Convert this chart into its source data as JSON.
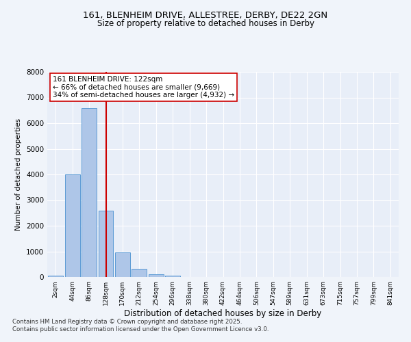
{
  "title1": "161, BLENHEIM DRIVE, ALLESTREE, DERBY, DE22 2GN",
  "title2": "Size of property relative to detached houses in Derby",
  "xlabel": "Distribution of detached houses by size in Derby",
  "ylabel": "Number of detached properties",
  "categories": [
    "2sqm",
    "44sqm",
    "86sqm",
    "128sqm",
    "170sqm",
    "212sqm",
    "254sqm",
    "296sqm",
    "338sqm",
    "380sqm",
    "422sqm",
    "464sqm",
    "506sqm",
    "547sqm",
    "589sqm",
    "631sqm",
    "673sqm",
    "715sqm",
    "757sqm",
    "799sqm",
    "841sqm"
  ],
  "values": [
    50,
    4000,
    6600,
    2600,
    970,
    320,
    110,
    60,
    0,
    0,
    0,
    0,
    0,
    0,
    0,
    0,
    0,
    0,
    0,
    0,
    0
  ],
  "bar_color": "#aec6e8",
  "bar_edge_color": "#5b9bd5",
  "vline_x": 3,
  "vline_color": "#cc0000",
  "annotation_text": "161 BLENHEIM DRIVE: 122sqm\n← 66% of detached houses are smaller (9,669)\n34% of semi-detached houses are larger (4,932) →",
  "annotation_box_color": "#ffffff",
  "annotation_box_edge": "#cc0000",
  "ylim": [
    0,
    8000
  ],
  "yticks": [
    0,
    1000,
    2000,
    3000,
    4000,
    5000,
    6000,
    7000,
    8000
  ],
  "footer1": "Contains HM Land Registry data © Crown copyright and database right 2025.",
  "footer2": "Contains public sector information licensed under the Open Government Licence v3.0.",
  "bg_color": "#f0f4fa",
  "plot_bg_color": "#e8eef8"
}
